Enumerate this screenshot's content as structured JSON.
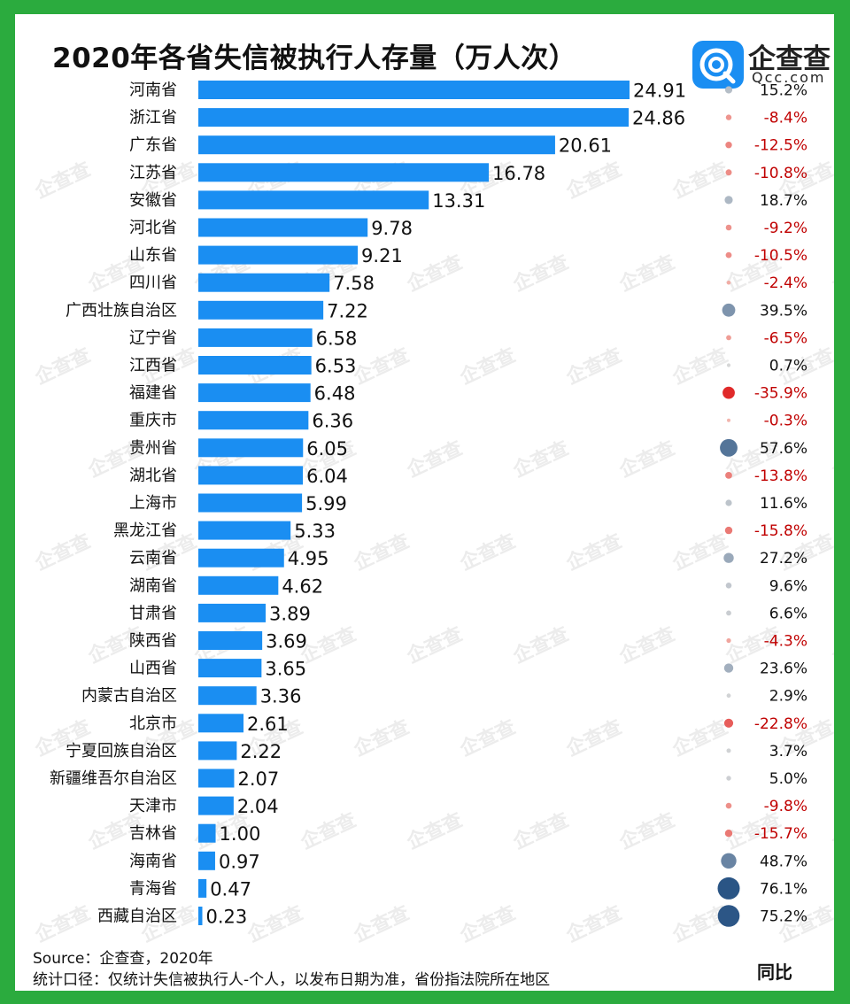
{
  "header": {
    "title": "2020年各省失信被执行人存量（万人次）",
    "logo_name": "企查查",
    "logo_domain": "Qcc.com",
    "watermark": "企查查"
  },
  "footer": {
    "source": "Source：企查查，2020年",
    "note": "统计口径：仅统计失信被执行人-个人，以发布日期为准，省份指法院所在地区"
  },
  "chart_data": {
    "type": "bar",
    "orientation": "horizontal",
    "title": "2020年各省失信被执行人存量（万人次）",
    "categories": [
      "河南省",
      "浙江省",
      "广东省",
      "江苏省",
      "安徽省",
      "河北省",
      "山东省",
      "四川省",
      "广西壮族自治区",
      "辽宁省",
      "江西省",
      "福建省",
      "重庆市",
      "贵州省",
      "湖北省",
      "上海市",
      "黑龙江省",
      "云南省",
      "湖南省",
      "甘肃省",
      "陕西省",
      "山西省",
      "内蒙古自治区",
      "北京市",
      "宁夏回族自治区",
      "新疆维吾尔自治区",
      "天津市",
      "吉林省",
      "海南省",
      "青海省",
      "西藏自治区"
    ],
    "values": [
      24.91,
      24.86,
      20.61,
      16.78,
      13.31,
      9.78,
      9.21,
      7.58,
      7.22,
      6.58,
      6.53,
      6.48,
      6.36,
      6.05,
      6.04,
      5.99,
      5.33,
      4.95,
      4.62,
      3.89,
      3.69,
      3.65,
      3.36,
      2.61,
      2.22,
      2.07,
      2.04,
      1.0,
      0.97,
      0.47,
      0.23
    ],
    "value_labels": [
      "24.91",
      "24.86",
      "20.61",
      "16.78",
      "13.31",
      "9.78",
      "9.21",
      "7.58",
      "7.22",
      "6.58",
      "6.53",
      "6.48",
      "6.36",
      "6.05",
      "6.04",
      "5.99",
      "5.33",
      "4.95",
      "4.62",
      "3.89",
      "3.69",
      "3.65",
      "3.36",
      "2.61",
      "2.22",
      "2.07",
      "2.04",
      "1.00",
      "0.97",
      "0.47",
      "0.23"
    ],
    "yoy_label": "同比",
    "yoy_values": [
      15.2,
      -8.4,
      -12.5,
      -10.8,
      18.7,
      -9.2,
      -10.5,
      -2.4,
      39.5,
      -6.5,
      0.7,
      -35.9,
      -0.3,
      57.6,
      -13.8,
      11.6,
      -15.8,
      27.2,
      9.6,
      6.6,
      -4.3,
      23.6,
      2.9,
      -22.8,
      3.7,
      5.0,
      -9.8,
      -15.7,
      48.7,
      76.1,
      75.2
    ],
    "yoy_labels": [
      "15.2%",
      "-8.4%",
      "-12.5%",
      "-10.8%",
      "18.7%",
      "-9.2%",
      "-10.5%",
      "-2.4%",
      "39.5%",
      "-6.5%",
      "0.7%",
      "-35.9%",
      "-0.3%",
      "57.6%",
      "-13.8%",
      "11.6%",
      "-15.8%",
      "27.2%",
      "9.6%",
      "6.6%",
      "-4.3%",
      "23.6%",
      "2.9%",
      "-22.8%",
      "3.7%",
      "5.0%",
      "-9.8%",
      "-15.7%",
      "48.7%",
      "76.1%",
      "75.2%"
    ],
    "xlim": [
      0,
      25
    ],
    "grid": false
  },
  "colors": {
    "bar": "#1a8ef2",
    "background_frame": "#2bab3e",
    "positive_text": "#111111",
    "negative_text": "#c00000",
    "positive_dot": "#4a7fb5",
    "negative_dot": "#e8403a"
  }
}
